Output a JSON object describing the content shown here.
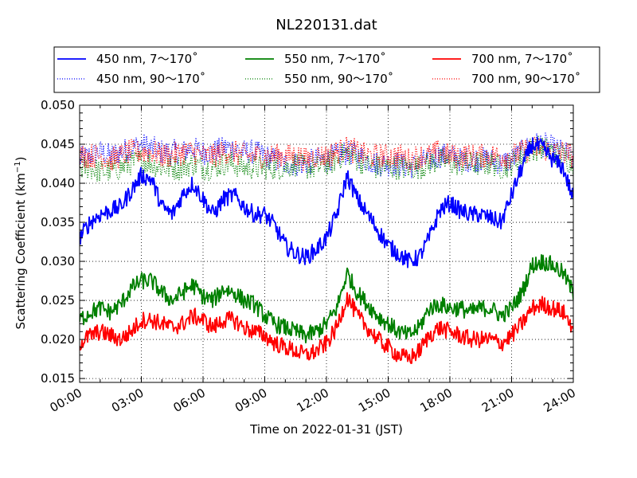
{
  "chart_data": {
    "type": "line",
    "title": "NL220131.dat",
    "xlabel": "Time on 2022-01-31 (JST)",
    "ylabel_main": "Scattering Coefficient (km",
    "ylabel_sup": "−1",
    "ylabel_end": ")",
    "xlim": [
      0,
      24
    ],
    "ylim": [
      0.0145,
      0.05
    ],
    "x_ticks": [
      0,
      3,
      6,
      9,
      12,
      15,
      18,
      21,
      24
    ],
    "x_tick_labels": [
      "00:00",
      "03:00",
      "06:00",
      "09:00",
      "12:00",
      "15:00",
      "18:00",
      "21:00",
      "24:00"
    ],
    "y_ticks": [
      0.015,
      0.02,
      0.025,
      0.03,
      0.035,
      0.04,
      0.045,
      0.05
    ],
    "y_tick_labels": [
      "0.015",
      "0.020",
      "0.025",
      "0.030",
      "0.035",
      "0.040",
      "0.045",
      "0.050"
    ],
    "grid": true,
    "legend_position": "top",
    "series": [
      {
        "name": "450 nm, 7～170˚",
        "color": "#0000ff",
        "style": "solid",
        "x": [
          0,
          0.5,
          1,
          1.5,
          2,
          2.5,
          3,
          3.5,
          4,
          4.5,
          5,
          5.5,
          6,
          6.5,
          7,
          7.5,
          8,
          8.5,
          9,
          9.5,
          10,
          10.5,
          11,
          11.5,
          12,
          12.5,
          13,
          13.5,
          14,
          14.5,
          15,
          15.5,
          16,
          16.5,
          17,
          17.5,
          18,
          18.5,
          19,
          19.5,
          20,
          20.5,
          21,
          21.5,
          22,
          22.5,
          23,
          23.5,
          24
        ],
        "y": [
          0.033,
          0.035,
          0.036,
          0.0365,
          0.037,
          0.039,
          0.041,
          0.0405,
          0.037,
          0.036,
          0.0385,
          0.04,
          0.038,
          0.036,
          0.038,
          0.0385,
          0.037,
          0.036,
          0.036,
          0.0345,
          0.032,
          0.031,
          0.0305,
          0.0315,
          0.033,
          0.036,
          0.041,
          0.038,
          0.036,
          0.034,
          0.032,
          0.031,
          0.03,
          0.0305,
          0.033,
          0.0365,
          0.0375,
          0.0365,
          0.036,
          0.036,
          0.0355,
          0.035,
          0.0385,
          0.042,
          0.045,
          0.0445,
          0.043,
          0.042,
          0.038
        ]
      },
      {
        "name": "450 nm, 90～170˚",
        "color": "#0000ff",
        "style": "dotted",
        "x": [
          0,
          0.5,
          1,
          1.5,
          2,
          2.5,
          3,
          3.5,
          4,
          4.5,
          5,
          5.5,
          6,
          6.5,
          7,
          7.5,
          8,
          8.5,
          9,
          9.5,
          10,
          10.5,
          11,
          11.5,
          12,
          12.5,
          13,
          13.5,
          14,
          14.5,
          15,
          15.5,
          16,
          16.5,
          17,
          17.5,
          18,
          18.5,
          19,
          19.5,
          20,
          20.5,
          21,
          21.5,
          22,
          22.5,
          23,
          23.5,
          24
        ],
        "y": [
          0.043,
          0.0435,
          0.044,
          0.0435,
          0.044,
          0.0445,
          0.045,
          0.0445,
          0.044,
          0.044,
          0.044,
          0.0445,
          0.044,
          0.044,
          0.0445,
          0.0445,
          0.044,
          0.044,
          0.0435,
          0.043,
          0.0425,
          0.0425,
          0.0425,
          0.043,
          0.043,
          0.0435,
          0.044,
          0.0435,
          0.043,
          0.0425,
          0.0425,
          0.0425,
          0.042,
          0.0425,
          0.043,
          0.0435,
          0.0435,
          0.043,
          0.043,
          0.043,
          0.043,
          0.0425,
          0.043,
          0.044,
          0.045,
          0.045,
          0.0445,
          0.044,
          0.043
        ]
      },
      {
        "name": "550 nm, 7～170˚",
        "color": "#008000",
        "style": "solid",
        "x": [
          0,
          0.5,
          1,
          1.5,
          2,
          2.5,
          3,
          3.5,
          4,
          4.5,
          5,
          5.5,
          6,
          6.5,
          7,
          7.5,
          8,
          8.5,
          9,
          9.5,
          10,
          10.5,
          11,
          11.5,
          12,
          12.5,
          13,
          13.5,
          14,
          14.5,
          15,
          15.5,
          16,
          16.5,
          17,
          17.5,
          18,
          18.5,
          19,
          19.5,
          20,
          20.5,
          21,
          21.5,
          22,
          22.5,
          23,
          23.5,
          24
        ],
        "y": [
          0.0225,
          0.0235,
          0.024,
          0.0235,
          0.0245,
          0.0265,
          0.0275,
          0.0275,
          0.026,
          0.025,
          0.026,
          0.027,
          0.0255,
          0.025,
          0.0265,
          0.026,
          0.025,
          0.0245,
          0.023,
          0.022,
          0.0215,
          0.021,
          0.0205,
          0.021,
          0.022,
          0.024,
          0.0285,
          0.026,
          0.0245,
          0.023,
          0.022,
          0.021,
          0.0205,
          0.0215,
          0.024,
          0.0245,
          0.024,
          0.024,
          0.0235,
          0.024,
          0.024,
          0.023,
          0.024,
          0.026,
          0.0295,
          0.03,
          0.0295,
          0.0285,
          0.026
        ]
      },
      {
        "name": "550 nm, 90～170˚",
        "color": "#008000",
        "style": "dotted",
        "x": [
          0,
          0.5,
          1,
          1.5,
          2,
          2.5,
          3,
          3.5,
          4,
          4.5,
          5,
          5.5,
          6,
          6.5,
          7,
          7.5,
          8,
          8.5,
          9,
          9.5,
          10,
          10.5,
          11,
          11.5,
          12,
          12.5,
          13,
          13.5,
          14,
          14.5,
          15,
          15.5,
          16,
          16.5,
          17,
          17.5,
          18,
          18.5,
          19,
          19.5,
          20,
          20.5,
          21,
          21.5,
          22,
          22.5,
          23,
          23.5,
          24
        ],
        "y": [
          0.042,
          0.042,
          0.0415,
          0.0415,
          0.042,
          0.0425,
          0.043,
          0.0425,
          0.042,
          0.042,
          0.042,
          0.0425,
          0.042,
          0.042,
          0.0425,
          0.0425,
          0.042,
          0.042,
          0.042,
          0.042,
          0.042,
          0.0425,
          0.042,
          0.042,
          0.0425,
          0.043,
          0.044,
          0.043,
          0.0425,
          0.042,
          0.042,
          0.042,
          0.042,
          0.042,
          0.0425,
          0.043,
          0.0425,
          0.0425,
          0.0425,
          0.0425,
          0.0425,
          0.042,
          0.0425,
          0.0435,
          0.0445,
          0.0445,
          0.044,
          0.0435,
          0.0425
        ]
      },
      {
        "name": "700 nm, 7～170˚",
        "color": "#ff0000",
        "style": "solid",
        "x": [
          0,
          0.5,
          1,
          1.5,
          2,
          2.5,
          3,
          3.5,
          4,
          4.5,
          5,
          5.5,
          6,
          6.5,
          7,
          7.5,
          8,
          8.5,
          9,
          9.5,
          10,
          10.5,
          11,
          11.5,
          12,
          12.5,
          13,
          13.5,
          14,
          14.5,
          15,
          15.5,
          16,
          16.5,
          17,
          17.5,
          18,
          18.5,
          19,
          19.5,
          20,
          20.5,
          21,
          21.5,
          22,
          22.5,
          23,
          23.5,
          24
        ],
        "y": [
          0.0195,
          0.0205,
          0.021,
          0.0205,
          0.02,
          0.021,
          0.0225,
          0.0225,
          0.022,
          0.0215,
          0.022,
          0.023,
          0.0225,
          0.0215,
          0.0225,
          0.0225,
          0.0215,
          0.021,
          0.0205,
          0.0195,
          0.019,
          0.0185,
          0.018,
          0.0185,
          0.0195,
          0.0215,
          0.0255,
          0.023,
          0.0215,
          0.02,
          0.019,
          0.018,
          0.0175,
          0.0185,
          0.0205,
          0.0215,
          0.021,
          0.0205,
          0.02,
          0.02,
          0.02,
          0.0195,
          0.0205,
          0.022,
          0.024,
          0.0245,
          0.024,
          0.0235,
          0.0215
        ]
      },
      {
        "name": "700 nm, 90～170˚",
        "color": "#ff0000",
        "style": "dotted",
        "x": [
          0,
          0.5,
          1,
          1.5,
          2,
          2.5,
          3,
          3.5,
          4,
          4.5,
          5,
          5.5,
          6,
          6.5,
          7,
          7.5,
          8,
          8.5,
          9,
          9.5,
          10,
          10.5,
          11,
          11.5,
          12,
          12.5,
          13,
          13.5,
          14,
          14.5,
          15,
          15.5,
          16,
          16.5,
          17,
          17.5,
          18,
          18.5,
          19,
          19.5,
          20,
          20.5,
          21,
          21.5,
          22,
          22.5,
          23,
          23.5,
          24
        ],
        "y": [
          0.0435,
          0.0435,
          0.0435,
          0.043,
          0.0435,
          0.044,
          0.044,
          0.044,
          0.0435,
          0.0435,
          0.044,
          0.044,
          0.0435,
          0.0435,
          0.044,
          0.044,
          0.0435,
          0.0435,
          0.0435,
          0.0435,
          0.0435,
          0.0435,
          0.043,
          0.0435,
          0.0435,
          0.044,
          0.0445,
          0.044,
          0.0435,
          0.0435,
          0.0435,
          0.0435,
          0.043,
          0.0435,
          0.0435,
          0.044,
          0.0435,
          0.0435,
          0.0435,
          0.0435,
          0.0435,
          0.0435,
          0.0435,
          0.044,
          0.0445,
          0.0445,
          0.044,
          0.044,
          0.0435
        ]
      }
    ]
  }
}
